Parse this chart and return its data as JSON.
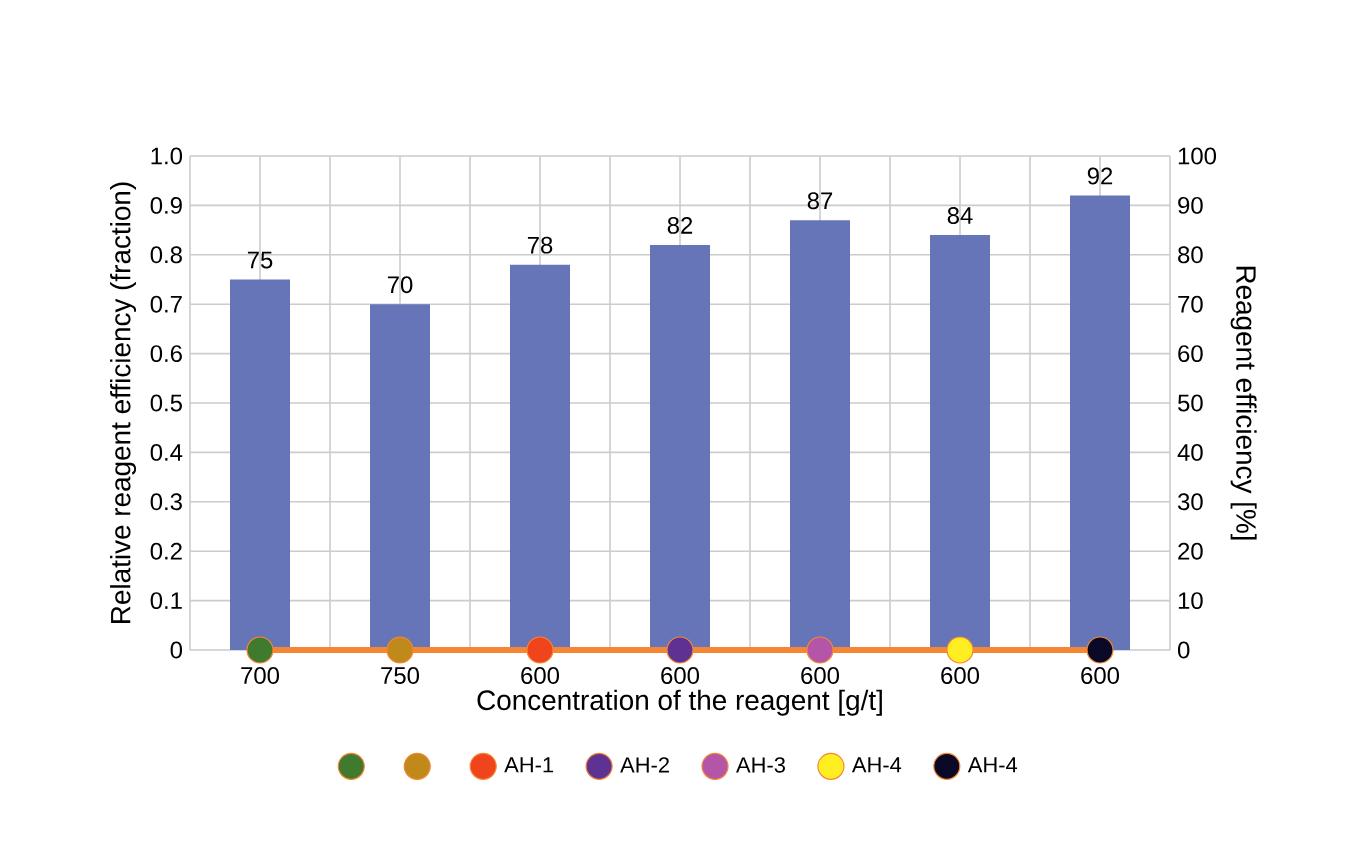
{
  "chart_data": {
    "type": "bar",
    "xlabel": "Concentration of the reagent [g/t]",
    "ylabel": "Relative reagent efficiency (fraction)",
    "y2label": "Reagent efficiency [%]",
    "categories": [
      "700",
      "750",
      "600",
      "600",
      "600",
      "600",
      "600"
    ],
    "ylim": [
      0,
      1
    ],
    "yticks": [
      0,
      {
        "value": 0.1,
        "label": "0.1"
      },
      {
        "value": 0.2,
        "label": "0.2"
      },
      {
        "value": 0.3,
        "label": "0.3"
      },
      {
        "value": 0.4,
        "label": "0.4"
      },
      {
        "value": 0.5,
        "label": "0.5"
      },
      {
        "value": 0.6,
        "label": "0.6"
      },
      {
        "value": 0.7,
        "label": "0.7"
      },
      {
        "value": 0.8,
        "label": "0.8"
      },
      {
        "value": 0.9,
        "label": "0.9"
      },
      {
        "value": 1,
        "label": "1.0"
      }
    ],
    "y2lim": [
      0,
      100
    ],
    "y2ticks": [
      0,
      10,
      20,
      30,
      40,
      50,
      60,
      70,
      80,
      90,
      100
    ],
    "grid": true,
    "legend": "bottom",
    "series": [
      {
        "type": "bar",
        "axis": "y2",
        "color": "#6674b8",
        "values": [
          75,
          70,
          78,
          82,
          87,
          84,
          92
        ],
        "value_labels": [
          "75",
          "70",
          "78",
          "82",
          "87",
          "84",
          "92"
        ]
      },
      {
        "type": "line",
        "color": "#f58634",
        "values": [
          0,
          0,
          0,
          0,
          0,
          0,
          0
        ]
      },
      {
        "type": "scatter",
        "marker": "circle",
        "color": "#3f7a2e",
        "values": [
          0,
          null,
          null,
          null,
          null,
          null,
          null
        ]
      },
      {
        "type": "scatter",
        "marker": "circle",
        "color": "#bf8a1a",
        "values": [
          null,
          0,
          null,
          null,
          null,
          null,
          null
        ]
      },
      {
        "type": "scatter",
        "marker": "circle",
        "name": "AH-1",
        "color": "#f0441c",
        "values": [
          null,
          null,
          0,
          null,
          null,
          null,
          null
        ]
      },
      {
        "type": "scatter",
        "marker": "circle",
        "name": "AH-2",
        "color": "#5e3292",
        "values": [
          null,
          null,
          null,
          0,
          null,
          null,
          null
        ]
      },
      {
        "type": "scatter",
        "marker": "circle",
        "name": "AH-3",
        "color": "#b455a8",
        "values": [
          null,
          null,
          null,
          null,
          0,
          null,
          null
        ]
      },
      {
        "type": "scatter",
        "marker": "circle",
        "name": "AH-4",
        "color": "#ffee22",
        "values": [
          null,
          null,
          null,
          null,
          null,
          0,
          null
        ]
      },
      {
        "type": "scatter",
        "marker": "circle",
        "name": "AH-4",
        "color": "#0a0a28",
        "values": [
          null,
          null,
          null,
          null,
          null,
          null,
          0
        ]
      }
    ]
  }
}
